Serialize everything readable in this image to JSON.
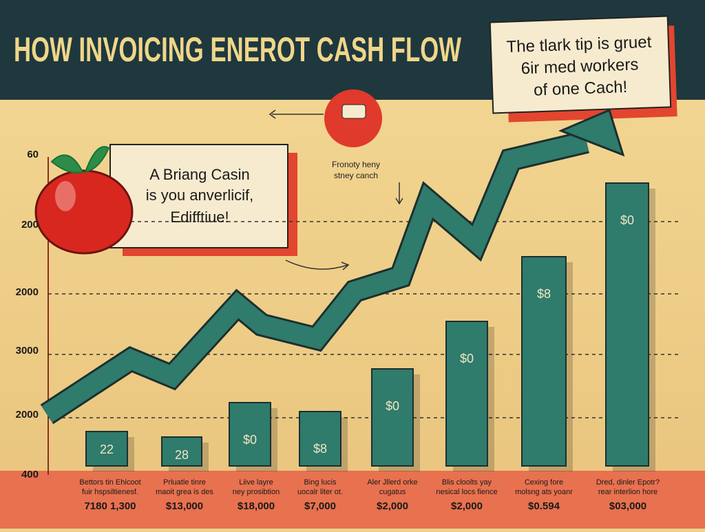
{
  "header": {
    "title": "HOW INVOICING ENEROT CASH FLOW"
  },
  "callouts": [
    {
      "lines": [
        "The tlark tip is gruet",
        "6ir med workers",
        "of one Cach!"
      ]
    },
    {
      "lines": [
        "A Briang Casin",
        "is you anverlicif,",
        "Edifftiue!"
      ]
    }
  ],
  "note": {
    "lines": [
      "Fronoty heny",
      "stney canch"
    ]
  },
  "y_labels": [
    "60",
    "200",
    "2000",
    "3000",
    "2000",
    "400"
  ],
  "bars": [
    {
      "label": "22"
    },
    {
      "label": "28"
    },
    {
      "label": "$0"
    },
    {
      "label": "$8"
    },
    {
      "label": "$0"
    },
    {
      "label": "$0"
    },
    {
      "label": "$8"
    },
    {
      "label": "$0"
    }
  ],
  "categories": [
    {
      "lines": [
        "Bettors tin Ehicoot",
        "fuir hspsiltienesf."
      ],
      "value": "7180 1,300"
    },
    {
      "lines": [
        "Prluatle tinre",
        "maoit grea is des"
      ],
      "value": "$13,000"
    },
    {
      "lines": [
        "Liive layre",
        "ney prosibtion"
      ],
      "value": "$18,000"
    },
    {
      "lines": [
        "Bing lucis",
        "uocalr liter ot."
      ],
      "value": "$7,000"
    },
    {
      "lines": [
        "Aler Jllerd orke",
        "cugatus"
      ],
      "value": "$2,000"
    },
    {
      "lines": [
        "Blis cloolts yay",
        "nesical locs fience"
      ],
      "value": "$2,000"
    },
    {
      "lines": [
        "Cexing fore",
        "molsng ats yoanr"
      ],
      "value": "$0.594"
    },
    {
      "lines": [
        "Dred, dinler Epotr?",
        "rear interlion hore"
      ],
      "value": "$03,000"
    }
  ]
}
